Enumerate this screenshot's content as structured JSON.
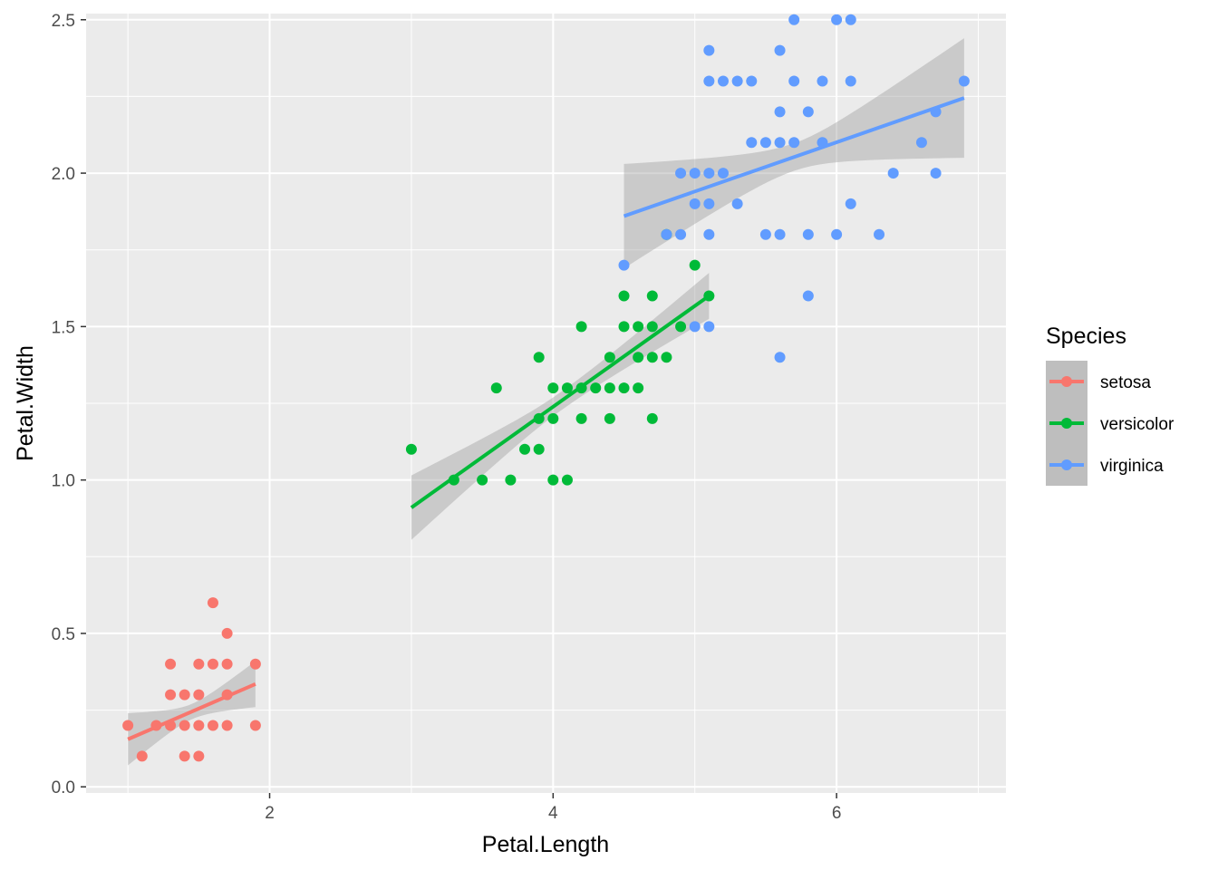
{
  "chart_data": {
    "type": "scatter",
    "title": "",
    "xlabel": "Petal.Length",
    "ylabel": "Petal.Width",
    "xlim": [
      0.705,
      7.195
    ],
    "ylim": [
      -0.02,
      2.52
    ],
    "x_ticks": [
      2,
      4,
      6
    ],
    "y_ticks": [
      0.0,
      0.5,
      1.0,
      1.5,
      2.0,
      2.5
    ],
    "x_tick_labels": [
      "2",
      "4",
      "6"
    ],
    "y_tick_labels": [
      "0.0",
      "0.5",
      "1.0",
      "1.5",
      "2.0",
      "2.5"
    ],
    "grid": true,
    "legend": {
      "title": "Species",
      "placement": "right"
    },
    "smooth": "linear fit with confidence band",
    "series": [
      {
        "name": "setosa",
        "color": "#F8766D",
        "fit": {
          "x": [
            1.0,
            1.9
          ],
          "y": [
            0.155,
            0.335
          ],
          "ci_halfwidth_ends": [
            0.085,
            0.075
          ],
          "ci_halfwidth_mid": 0.025
        },
        "points": [
          [
            1.0,
            0.2
          ],
          [
            1.1,
            0.1
          ],
          [
            1.2,
            0.2
          ],
          [
            1.3,
            0.2
          ],
          [
            1.3,
            0.3
          ],
          [
            1.3,
            0.4
          ],
          [
            1.4,
            0.1
          ],
          [
            1.4,
            0.2
          ],
          [
            1.4,
            0.3
          ],
          [
            1.5,
            0.1
          ],
          [
            1.5,
            0.2
          ],
          [
            1.5,
            0.3
          ],
          [
            1.5,
            0.4
          ],
          [
            1.6,
            0.2
          ],
          [
            1.6,
            0.4
          ],
          [
            1.6,
            0.6
          ],
          [
            1.7,
            0.2
          ],
          [
            1.7,
            0.3
          ],
          [
            1.7,
            0.4
          ],
          [
            1.7,
            0.5
          ],
          [
            1.9,
            0.2
          ],
          [
            1.9,
            0.4
          ]
        ]
      },
      {
        "name": "versicolor",
        "color": "#00BA38",
        "fit": {
          "x": [
            3.0,
            5.1
          ],
          "y": [
            0.91,
            1.6
          ],
          "ci_halfwidth_ends": [
            0.105,
            0.075
          ],
          "ci_halfwidth_mid": 0.03
        },
        "points": [
          [
            3.0,
            1.1
          ],
          [
            3.3,
            1.0
          ],
          [
            3.5,
            1.0
          ],
          [
            3.6,
            1.3
          ],
          [
            3.7,
            1.0
          ],
          [
            3.8,
            1.1
          ],
          [
            3.9,
            1.1
          ],
          [
            3.9,
            1.2
          ],
          [
            3.9,
            1.4
          ],
          [
            4.0,
            1.0
          ],
          [
            4.0,
            1.2
          ],
          [
            4.0,
            1.3
          ],
          [
            4.1,
            1.0
          ],
          [
            4.1,
            1.3
          ],
          [
            4.2,
            1.2
          ],
          [
            4.2,
            1.3
          ],
          [
            4.2,
            1.5
          ],
          [
            4.3,
            1.3
          ],
          [
            4.4,
            1.2
          ],
          [
            4.4,
            1.3
          ],
          [
            4.4,
            1.4
          ],
          [
            4.5,
            1.3
          ],
          [
            4.5,
            1.5
          ],
          [
            4.5,
            1.6
          ],
          [
            4.6,
            1.3
          ],
          [
            4.6,
            1.4
          ],
          [
            4.6,
            1.5
          ],
          [
            4.7,
            1.2
          ],
          [
            4.7,
            1.4
          ],
          [
            4.7,
            1.5
          ],
          [
            4.7,
            1.6
          ],
          [
            4.8,
            1.4
          ],
          [
            4.8,
            1.8
          ],
          [
            4.9,
            1.5
          ],
          [
            5.0,
            1.7
          ],
          [
            5.1,
            1.6
          ]
        ]
      },
      {
        "name": "virginica",
        "color": "#619CFF",
        "fit": {
          "x": [
            4.5,
            6.9
          ],
          "y": [
            1.86,
            2.245
          ],
          "ci_halfwidth_ends": [
            0.17,
            0.195
          ],
          "ci_halfwidth_mid": 0.045
        },
        "points": [
          [
            4.5,
            1.7
          ],
          [
            4.8,
            1.8
          ],
          [
            4.9,
            1.8
          ],
          [
            4.9,
            2.0
          ],
          [
            5.0,
            1.5
          ],
          [
            5.0,
            1.9
          ],
          [
            5.0,
            2.0
          ],
          [
            5.1,
            1.5
          ],
          [
            5.1,
            1.8
          ],
          [
            5.1,
            1.9
          ],
          [
            5.1,
            2.0
          ],
          [
            5.1,
            2.3
          ],
          [
            5.1,
            2.4
          ],
          [
            5.2,
            2.0
          ],
          [
            5.2,
            2.3
          ],
          [
            5.3,
            1.9
          ],
          [
            5.3,
            2.3
          ],
          [
            5.4,
            2.1
          ],
          [
            5.4,
            2.3
          ],
          [
            5.5,
            1.8
          ],
          [
            5.5,
            2.1
          ],
          [
            5.6,
            1.4
          ],
          [
            5.6,
            1.8
          ],
          [
            5.6,
            2.1
          ],
          [
            5.6,
            2.2
          ],
          [
            5.6,
            2.4
          ],
          [
            5.7,
            2.1
          ],
          [
            5.7,
            2.3
          ],
          [
            5.7,
            2.5
          ],
          [
            5.8,
            1.6
          ],
          [
            5.8,
            1.8
          ],
          [
            5.8,
            2.2
          ],
          [
            5.9,
            2.1
          ],
          [
            5.9,
            2.3
          ],
          [
            6.0,
            1.8
          ],
          [
            6.0,
            2.5
          ],
          [
            6.1,
            1.9
          ],
          [
            6.1,
            2.3
          ],
          [
            6.1,
            2.5
          ],
          [
            6.3,
            1.8
          ],
          [
            6.4,
            2.0
          ],
          [
            6.6,
            2.1
          ],
          [
            6.7,
            2.0
          ],
          [
            6.7,
            2.2
          ],
          [
            6.9,
            2.3
          ]
        ]
      }
    ]
  }
}
